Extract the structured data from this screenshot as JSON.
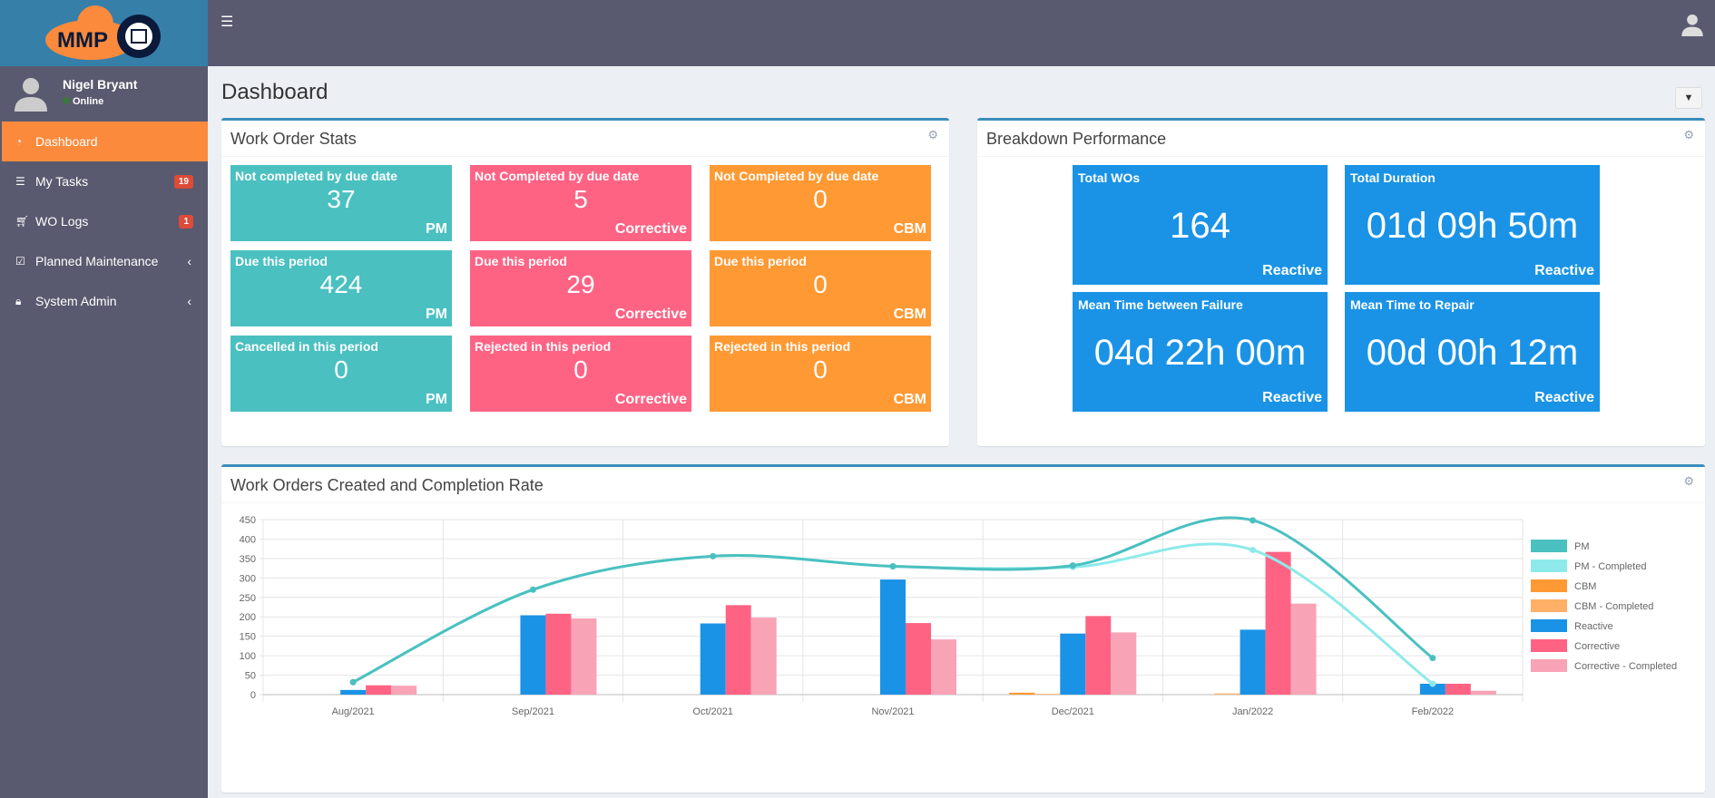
{
  "logo": {
    "text": "MMP"
  },
  "user": {
    "name": "Nigel Bryant",
    "status": "Online"
  },
  "nav": [
    {
      "label": "Dashboard",
      "icon": "dashboard-icon",
      "active": true
    },
    {
      "label": "My Tasks",
      "icon": "tasks-icon",
      "badge": "19"
    },
    {
      "label": "WO Logs",
      "icon": "cart-icon",
      "badge": "1"
    },
    {
      "label": "Planned Maintenance",
      "icon": "calendar-check-icon",
      "chevron": true
    },
    {
      "label": "System Admin",
      "icon": "lock-icon",
      "chevron": true
    }
  ],
  "page": {
    "title": "Dashboard"
  },
  "wo_stats": {
    "title": "Work Order Stats",
    "tiles": [
      [
        {
          "title": "Not completed by due date",
          "value": "37",
          "cat": "PM"
        },
        {
          "title": "Not Completed by due date",
          "value": "5",
          "cat": "Corrective"
        },
        {
          "title": "Not Completed by due date",
          "value": "0",
          "cat": "CBM"
        }
      ],
      [
        {
          "title": "Due this period",
          "value": "424",
          "cat": "PM"
        },
        {
          "title": "Due this period",
          "value": "29",
          "cat": "Corrective"
        },
        {
          "title": "Due this period",
          "value": "0",
          "cat": "CBM"
        }
      ],
      [
        {
          "title": "Cancelled in this period",
          "value": "0",
          "cat": "PM"
        },
        {
          "title": "Rejected in this period",
          "value": "0",
          "cat": "Corrective"
        },
        {
          "title": "Rejected in this period",
          "value": "0",
          "cat": "CBM"
        }
      ]
    ],
    "colors": [
      "#4bc0c0",
      "#ff6384",
      "#ff9933"
    ]
  },
  "breakdown": {
    "title": "Breakdown Performance",
    "tiles": [
      {
        "title": "Total WOs",
        "value": "164",
        "cat": "Reactive"
      },
      {
        "title": "Total Duration",
        "value": "01d 09h 50m",
        "cat": "Reactive"
      },
      {
        "title": "Mean Time between Failure",
        "value": "04d 22h 00m",
        "cat": "Reactive"
      },
      {
        "title": "Mean Time to Repair",
        "value": "00d 00h 12m",
        "cat": "Reactive"
      }
    ]
  },
  "chart_panel": {
    "title": "Work Orders Created and Completion Rate"
  },
  "chart_data": {
    "type": "bar",
    "categories": [
      "Aug/2021",
      "Sep/2021",
      "Oct/2021",
      "Nov/2021",
      "Dec/2021",
      "Jan/2022",
      "Feb/2022"
    ],
    "ylim": [
      0,
      450
    ],
    "yticks": [
      0,
      50,
      100,
      150,
      200,
      250,
      300,
      350,
      400,
      450
    ],
    "grid": true,
    "legend": "right",
    "series": [
      {
        "name": "PM",
        "type": "line",
        "color": "#4bc0c0",
        "values": [
          32,
          270,
          356,
          330,
          332,
          448,
          94
        ]
      },
      {
        "name": "PM - Completed",
        "type": "line",
        "color": "#8eeaea",
        "values": [
          32,
          270,
          356,
          330,
          328,
          372,
          28
        ]
      },
      {
        "name": "CBM",
        "type": "bar",
        "color": "#ff9933",
        "values": [
          0,
          0,
          0,
          0,
          5,
          0,
          0
        ]
      },
      {
        "name": "CBM - Completed",
        "type": "bar",
        "color": "#ffb066",
        "values": [
          0,
          0,
          0,
          0,
          2,
          3,
          0
        ]
      },
      {
        "name": "Reactive",
        "type": "bar",
        "color": "#1a93e6",
        "values": [
          12,
          204,
          183,
          296,
          157,
          167,
          28
        ]
      },
      {
        "name": "Corrective",
        "type": "bar",
        "color": "#ff6384",
        "values": [
          24,
          208,
          230,
          184,
          202,
          367,
          28
        ]
      },
      {
        "name": "Corrective - Completed",
        "type": "bar",
        "color": "#f8a3b6",
        "values": [
          23,
          196,
          198,
          142,
          160,
          234,
          10
        ]
      }
    ]
  }
}
